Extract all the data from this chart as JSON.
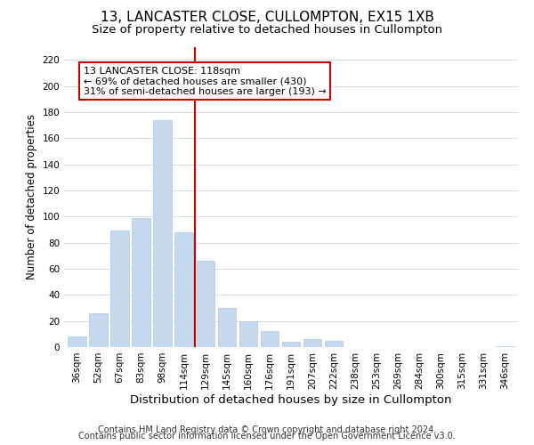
{
  "title": "13, LANCASTER CLOSE, CULLOMPTON, EX15 1XB",
  "subtitle": "Size of property relative to detached houses in Cullompton",
  "xlabel": "Distribution of detached houses by size in Cullompton",
  "ylabel": "Number of detached properties",
  "bar_labels": [
    "36sqm",
    "52sqm",
    "67sqm",
    "83sqm",
    "98sqm",
    "114sqm",
    "129sqm",
    "145sqm",
    "160sqm",
    "176sqm",
    "191sqm",
    "207sqm",
    "222sqm",
    "238sqm",
    "253sqm",
    "269sqm",
    "284sqm",
    "300sqm",
    "315sqm",
    "331sqm",
    "346sqm"
  ],
  "bar_values": [
    8,
    26,
    89,
    99,
    174,
    88,
    66,
    30,
    20,
    12,
    4,
    6,
    5,
    0,
    0,
    0,
    0,
    0,
    0,
    0,
    1
  ],
  "bar_color": "#c5d8ed",
  "bar_edge_color": "#b0c8e0",
  "vline_x": 5.5,
  "vline_color": "#cc0000",
  "annotation_line1": "13 LANCASTER CLOSE: 118sqm",
  "annotation_line2": "← 69% of detached houses are smaller (430)",
  "annotation_line3": "31% of semi-detached houses are larger (193) →",
  "annotation_box_color": "#ffffff",
  "annotation_box_edge": "#cc0000",
  "ylim": [
    0,
    230
  ],
  "yticks": [
    0,
    20,
    40,
    60,
    80,
    100,
    120,
    140,
    160,
    180,
    200,
    220
  ],
  "footer1": "Contains HM Land Registry data © Crown copyright and database right 2024.",
  "footer2": "Contains public sector information licensed under the Open Government Licence v3.0.",
  "title_fontsize": 11,
  "subtitle_fontsize": 9.5,
  "xlabel_fontsize": 9.5,
  "ylabel_fontsize": 8.5,
  "tick_fontsize": 7.5,
  "annot_fontsize": 8,
  "footer_fontsize": 7,
  "bg_color": "#ffffff",
  "grid_color": "#d0dfe8"
}
